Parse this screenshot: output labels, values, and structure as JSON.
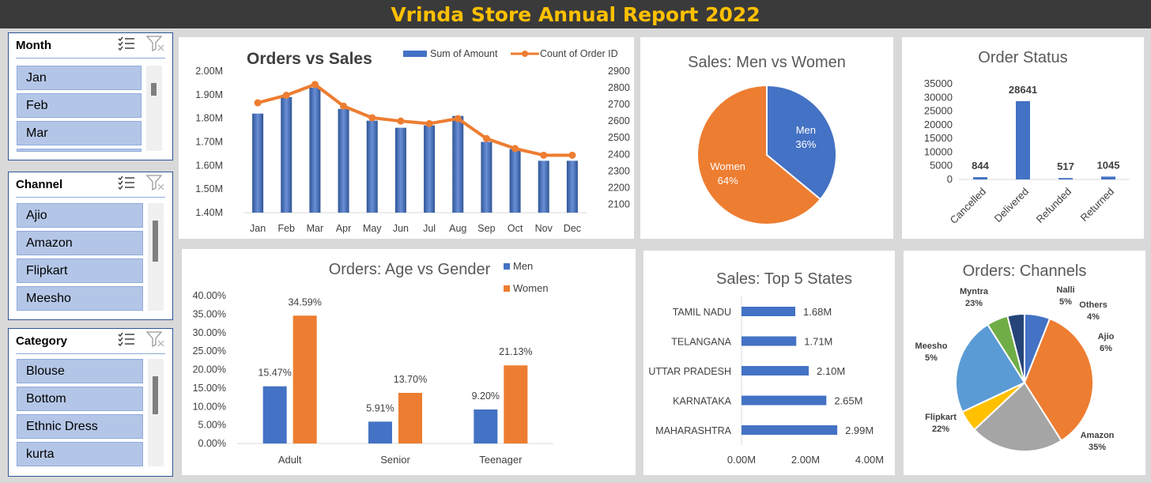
{
  "header": {
    "title": "Vrinda Store Annual Report 2022"
  },
  "slicers": [
    {
      "title": "Month",
      "items": [
        "Jan",
        "Feb",
        "Mar"
      ]
    },
    {
      "title": "Channel",
      "items": [
        "Ajio",
        "Amazon",
        "Flipkart",
        "Meesho"
      ]
    },
    {
      "title": "Category",
      "items": [
        "Blouse",
        "Bottom",
        "Ethnic Dress",
        "kurta"
      ]
    }
  ],
  "chart_data": [
    {
      "id": "orders-vs-sales",
      "type": "bar",
      "title": "Orders  vs Sales",
      "categories": [
        "Jan",
        "Feb",
        "Mar",
        "Apr",
        "May",
        "Jun",
        "Jul",
        "Aug",
        "Sep",
        "Oct",
        "Nov",
        "Dec"
      ],
      "series": [
        {
          "name": "Sum of Amount",
          "type": "bar",
          "axis": "left",
          "values": [
            1.82,
            1.89,
            1.93,
            1.84,
            1.79,
            1.76,
            1.77,
            1.81,
            1.7,
            1.67,
            1.62,
            1.62
          ]
        },
        {
          "name": "Count of Order ID",
          "type": "line",
          "axis": "right",
          "values": [
            2710,
            2755,
            2820,
            2690,
            2620,
            2600,
            2585,
            2615,
            2495,
            2435,
            2395,
            2395
          ]
        }
      ],
      "left_ticks": [
        "2.00M",
        "1.90M",
        "1.80M",
        "1.70M",
        "1.60M",
        "1.50M",
        "1.40M"
      ],
      "right_ticks": [
        "2900",
        "2800",
        "2700",
        "2600",
        "2500",
        "2400",
        "2300",
        "2200",
        "2100"
      ],
      "ylim_left": [
        1.4,
        2.0
      ],
      "ylim_right": [
        2050,
        2900
      ],
      "legend_position": "top-right",
      "colors": {
        "bar": "#4472c4",
        "line": "#ed7d31"
      }
    },
    {
      "id": "sales-gender",
      "type": "pie",
      "title": "Sales: Men vs Women",
      "slices": [
        {
          "label": "Men",
          "value": 36,
          "display": "36%",
          "color": "#4472c4"
        },
        {
          "label": "Women",
          "value": 64,
          "display": "64%",
          "color": "#ed7d31"
        }
      ]
    },
    {
      "id": "order-status",
      "type": "bar",
      "title": "Order Status",
      "categories": [
        "Cancelled",
        "Delivered",
        "Refunded",
        "Returned"
      ],
      "values": [
        844,
        28641,
        517,
        1045
      ],
      "data_labels": [
        "844",
        "28641",
        "517",
        "1045"
      ],
      "y_ticks": [
        "35000",
        "30000",
        "25000",
        "20000",
        "15000",
        "10000",
        "5000",
        "0"
      ],
      "ylim": [
        0,
        35000
      ],
      "colors": {
        "bar": "#4472c4"
      }
    },
    {
      "id": "age-gender",
      "type": "bar",
      "title": "Orders: Age vs Gender",
      "categories": [
        "Adult",
        "Senior",
        "Teenager"
      ],
      "series": [
        {
          "name": "Men",
          "values": [
            15.47,
            5.91,
            9.2
          ],
          "labels": [
            "15.47%",
            "5.91%",
            "9.20%"
          ],
          "color": "#4472c4"
        },
        {
          "name": "Women",
          "values": [
            34.59,
            13.7,
            21.13
          ],
          "labels": [
            "34.59%",
            "13.70%",
            "21.13%"
          ],
          "color": "#ed7d31"
        }
      ],
      "y_ticks": [
        "40.00%",
        "35.00%",
        "30.00%",
        "25.00%",
        "20.00%",
        "15.00%",
        "10.00%",
        "5.00%",
        "0.00%"
      ],
      "ylim": [
        0,
        40
      ],
      "legend_position": "top-right"
    },
    {
      "id": "top-states",
      "type": "bar",
      "orientation": "horizontal",
      "title": "Sales: Top 5 States",
      "categories": [
        "TAMIL NADU",
        "TELANGANA",
        "UTTAR PRADESH",
        "KARNATAKA",
        "MAHARASHTRA"
      ],
      "values": [
        1.68,
        1.71,
        2.1,
        2.65,
        2.99
      ],
      "data_labels": [
        "1.68M",
        "1.71M",
        "2.10M",
        "2.65M",
        "2.99M"
      ],
      "x_ticks": [
        "0.00M",
        "2.00M",
        "4.00M"
      ],
      "xlim": [
        0,
        4
      ],
      "colors": {
        "bar": "#4472c4"
      }
    },
    {
      "id": "channels",
      "type": "pie",
      "title": "Orders: Channels",
      "slices": [
        {
          "label": "Ajio",
          "value": 6,
          "display": "6%",
          "color": "#4472c4"
        },
        {
          "label": "Amazon",
          "value": 35,
          "display": "35%",
          "color": "#ed7d31"
        },
        {
          "label": "Flipkart",
          "value": 22,
          "display": "22%",
          "color": "#a5a5a5"
        },
        {
          "label": "Meesho",
          "value": 5,
          "display": "5%",
          "color": "#ffc000"
        },
        {
          "label": "Myntra",
          "value": 23,
          "display": "23%",
          "color": "#5b9bd5"
        },
        {
          "label": "Nalli",
          "value": 5,
          "display": "5%",
          "color": "#70ad47"
        },
        {
          "label": "Others",
          "value": 4,
          "display": "4%",
          "color": "#264478"
        }
      ]
    }
  ]
}
